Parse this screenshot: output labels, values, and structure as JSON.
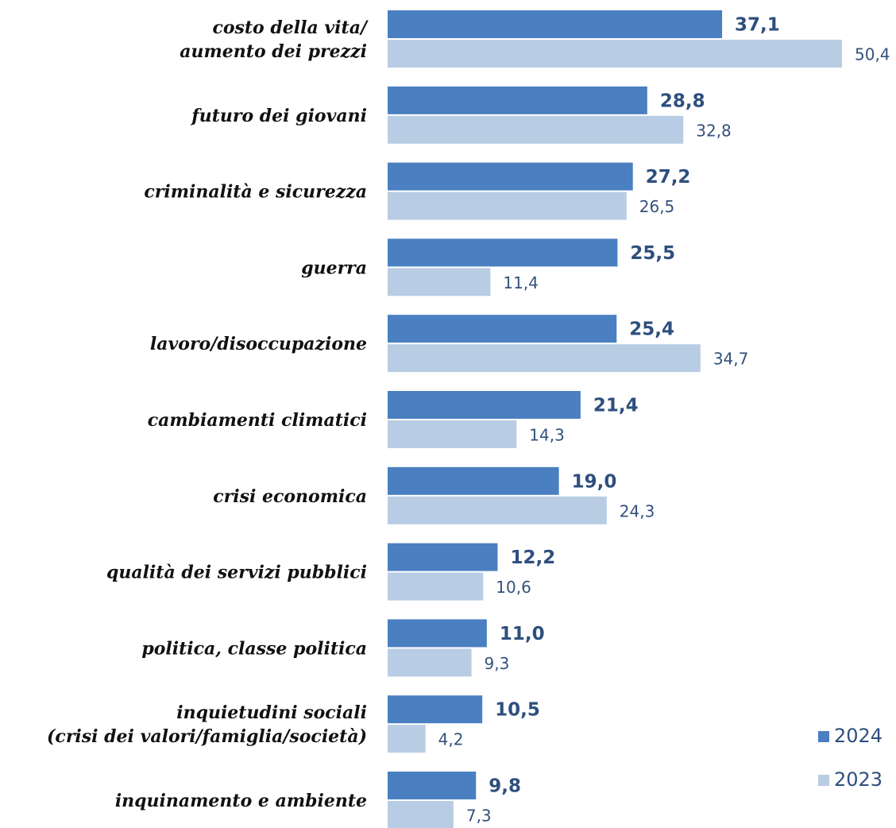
{
  "chart_data": {
    "type": "bar",
    "orientation": "horizontal",
    "categories": [
      [
        "costo della vita/",
        "aumento dei prezzi"
      ],
      [
        "futuro dei giovani"
      ],
      [
        "criminalità e sicurezza"
      ],
      [
        "guerra"
      ],
      [
        "lavoro/disoccupazione"
      ],
      [
        "cambiamenti climatici"
      ],
      [
        "crisi economica"
      ],
      [
        "qualità dei servizi pubblici"
      ],
      [
        "politica, classe politica"
      ],
      [
        "inquietudini sociali",
        "(crisi dei valori/famiglia/società)"
      ],
      [
        "inquinamento e ambiente"
      ]
    ],
    "series": [
      {
        "name": "2024",
        "color": "#4a7fc1",
        "values": [
          37.1,
          28.8,
          27.2,
          25.5,
          25.4,
          21.4,
          19.0,
          12.2,
          11.0,
          10.5,
          9.8
        ],
        "labels": [
          "37,1",
          "28,8",
          "27,2",
          "25,5",
          "25,4",
          "21,4",
          "19,0",
          "12,2",
          "11,0",
          "10,5",
          "9,8"
        ]
      },
      {
        "name": "2023",
        "color": "#b8cce4",
        "values": [
          50.4,
          32.8,
          26.5,
          11.4,
          34.7,
          14.3,
          24.3,
          10.6,
          9.3,
          4.2,
          7.3
        ],
        "labels": [
          "50,4",
          "32,8",
          "26,5",
          "11,4",
          "34,7",
          "14,3",
          "24,3",
          "10,6",
          "9,3",
          "4,2",
          "7,3"
        ]
      }
    ],
    "xlim": [
      0,
      50.4
    ],
    "grid": false,
    "legend": "bottom-right"
  }
}
